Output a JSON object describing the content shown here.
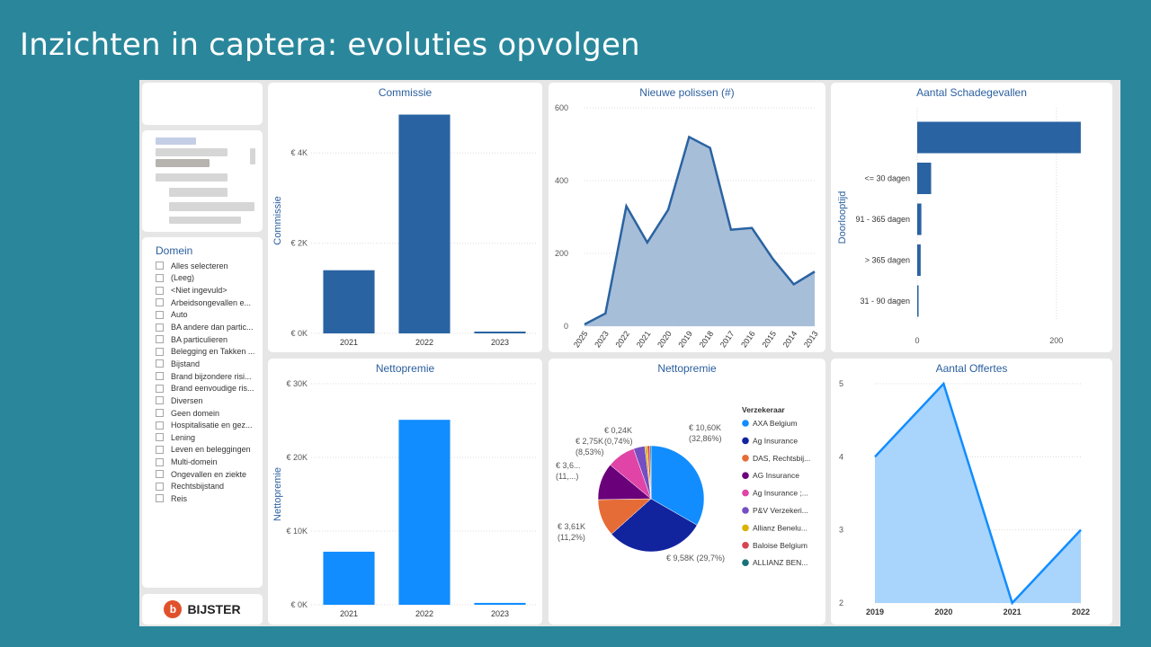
{
  "slide": {
    "title": "Inzichten in captera: evoluties opvolgen"
  },
  "slicer": {
    "title": "Domein",
    "items": [
      "Alles selecteren",
      "(Leeg)",
      "<Niet ingevuld>",
      "Arbeidsongevallen e...",
      "Auto",
      "BA andere dan partic...",
      "BA particulieren",
      "Belegging en Takken ...",
      "Bijstand",
      "Brand bijzondere risi...",
      "Brand eenvoudige ris...",
      "Diversen",
      "Geen domein",
      "Hospitalisatie en gez...",
      "Lening",
      "Leven en beleggingen",
      "Multi-domein",
      "Ongevallen en ziekte",
      "Rechtsbijstand",
      "Reis"
    ]
  },
  "logo": {
    "name": "BIJSTER",
    "icon": "bijster-logo-icon"
  },
  "colors": {
    "dark_blue": "#2a63a2",
    "bright_blue": "#118dff",
    "light_blue": "#a9d4fb",
    "area_fill": "#a7bed8",
    "title": "#2b5f9e"
  },
  "charts": {
    "commissie": {
      "title": "Commissie",
      "chart_data": {
        "type": "bar",
        "title": "Commissie",
        "ylabel": "Commissie",
        "categories": [
          "2021",
          "2022",
          "2023"
        ],
        "values": [
          1400,
          4850,
          40
        ],
        "ylim": [
          0,
          5000
        ],
        "yticks": [
          0,
          2000,
          4000
        ],
        "ytick_labels": [
          "€ 0K",
          "€ 2K",
          "€ 4K"
        ]
      }
    },
    "nieuwe_polissen": {
      "title": "Nieuwe polissen (#)",
      "chart_data": {
        "type": "area",
        "title": "Nieuwe polissen (#)",
        "categories": [
          "2025",
          "2023",
          "2022",
          "2021",
          "2020",
          "2019",
          "2018",
          "2017",
          "2016",
          "2015",
          "2014",
          "2013"
        ],
        "values": [
          5,
          35,
          330,
          230,
          320,
          520,
          490,
          265,
          270,
          185,
          115,
          150
        ],
        "ylim": [
          0,
          600
        ],
        "yticks": [
          0,
          200,
          400,
          600
        ],
        "ytick_labels": [
          "0",
          "200",
          "400",
          "600"
        ]
      }
    },
    "schadegevallen": {
      "title": "Aantal Schadegevallen",
      "chart_data": {
        "type": "bar",
        "orientation": "horizontal",
        "title": "Aantal Schadegevallen",
        "ylabel": "Doorlooptijd",
        "categories": [
          "",
          "<= 30 dagen",
          "91 - 365 dagen",
          "> 365 dagen",
          "31 - 90 dagen"
        ],
        "values": [
          235,
          20,
          6,
          5,
          2
        ],
        "xlim": [
          0,
          270
        ],
        "xticks": [
          0,
          200
        ],
        "xtick_labels": [
          "0",
          "200"
        ]
      }
    },
    "nettopremie_bar": {
      "title": "Nettopremie",
      "chart_data": {
        "type": "bar",
        "title": "Nettopremie",
        "ylabel": "Nettopremie",
        "categories": [
          "2021",
          "2022",
          "2023"
        ],
        "values": [
          7200,
          25100,
          250
        ],
        "ylim": [
          0,
          30000
        ],
        "yticks": [
          0,
          10000,
          20000,
          30000
        ],
        "ytick_labels": [
          "€ 0K",
          "€ 10K",
          "€ 20K",
          "€ 30K"
        ]
      }
    },
    "nettopremie_pie": {
      "title": "Nettopremie",
      "chart_data": {
        "type": "pie",
        "title": "Nettopremie",
        "legend_title": "Verzekeraar",
        "series": [
          {
            "name": "AXA Belgium",
            "value": 10600,
            "percent": 32.86,
            "color": "#118dff"
          },
          {
            "name": "Ag Insurance",
            "value": 9580,
            "percent": 29.7,
            "color": "#12239e"
          },
          {
            "name": "DAS, Rechtsbij...",
            "value": 3610,
            "percent": 11.2,
            "color": "#e66c37"
          },
          {
            "name": "AG Insurance",
            "value": 3600,
            "percent": 11.0,
            "color": "#6b007b"
          },
          {
            "name": "Ag Insurance ;...",
            "value": 2750,
            "percent": 8.53,
            "color": "#e044a7"
          },
          {
            "name": "P&V Verzekeri...",
            "value": 1100,
            "percent": 3.4,
            "color": "#744ec2"
          },
          {
            "name": "Allianz Benelu...",
            "value": 240,
            "percent": 0.74,
            "color": "#d9b300"
          },
          {
            "name": "Baloise Belgium",
            "value": 240,
            "percent": 0.74,
            "color": "#d64550"
          },
          {
            "name": "ALLIANZ BEN...",
            "value": 120,
            "percent": 0.4,
            "color": "#197278"
          }
        ],
        "data_labels": [
          {
            "text1": "€ 10,60K",
            "text2": "(32,86%)"
          },
          {
            "text1": "€ 9,58K (29,7%)",
            "text2": ""
          },
          {
            "text1": "€ 3,61K",
            "text2": "(11,2%)"
          },
          {
            "text1": "€ 3,6...",
            "text2": "(11,...)"
          },
          {
            "text1": "€ 2,75K",
            "text2": "(8,53%)"
          },
          {
            "text1": "€ 0,24K",
            "text2": "(0,74%)"
          }
        ]
      }
    },
    "offertes": {
      "title": "Aantal Offertes",
      "chart_data": {
        "type": "area",
        "title": "Aantal Offertes",
        "categories": [
          "2019",
          "2020",
          "2021",
          "2022"
        ],
        "values": [
          4,
          5,
          2,
          3
        ],
        "ylim": [
          2,
          5
        ],
        "yticks": [
          2,
          3,
          4,
          5
        ],
        "ytick_labels": [
          "2",
          "3",
          "4",
          "5"
        ]
      }
    }
  }
}
